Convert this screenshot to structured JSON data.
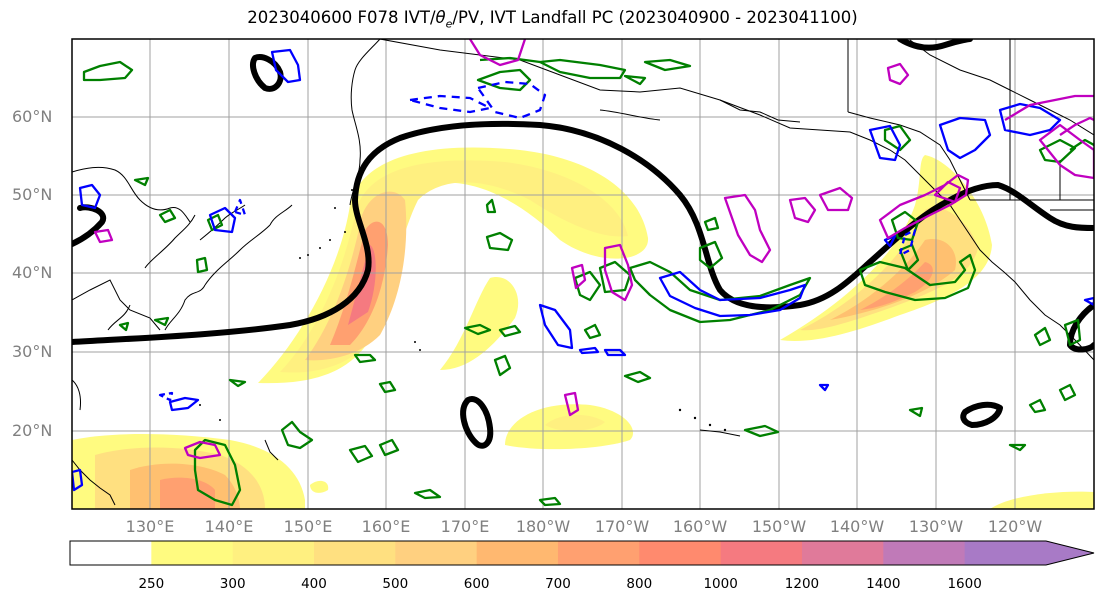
{
  "title": {
    "main": "2023040600 F078 IVT/",
    "theta": "θ",
    "sub": "e",
    "rest": "/PV, IVT Landfall PC (2023040900 - 2023041100)"
  },
  "lat_labels": [
    "60°N",
    "50°N",
    "40°N",
    "30°N",
    "20°N"
  ],
  "lon_labels": [
    "130°E",
    "140°E",
    "150°E",
    "160°E",
    "170°E",
    "180°W",
    "170°W",
    "160°W",
    "150°W",
    "140°W",
    "130°W",
    "120°W"
  ],
  "colorbar": {
    "labels": [
      "250",
      "300",
      "400",
      "500",
      "600",
      "700",
      "800",
      "1000",
      "1200",
      "1400",
      "1600"
    ],
    "colors": [
      "#ffffff",
      "#fffb80",
      "#fff080",
      "#ffe080",
      "#ffd080",
      "#ffb870",
      "#ffa070",
      "#ff8a6e",
      "#f57a80",
      "#e07a9a",
      "#c07ab8",
      "#a87ac6"
    ]
  },
  "map": {
    "extent": {
      "lon_min": 120,
      "lon_max": 250,
      "lat_min": 10,
      "lat_max": 70
    },
    "ivt_units": "kg/m/s",
    "contours": {
      "pv": "#000000",
      "theta_e_green": "#008000",
      "theta_e_blue": "#0000ff",
      "theta_e_magenta": "#c000c0"
    }
  }
}
